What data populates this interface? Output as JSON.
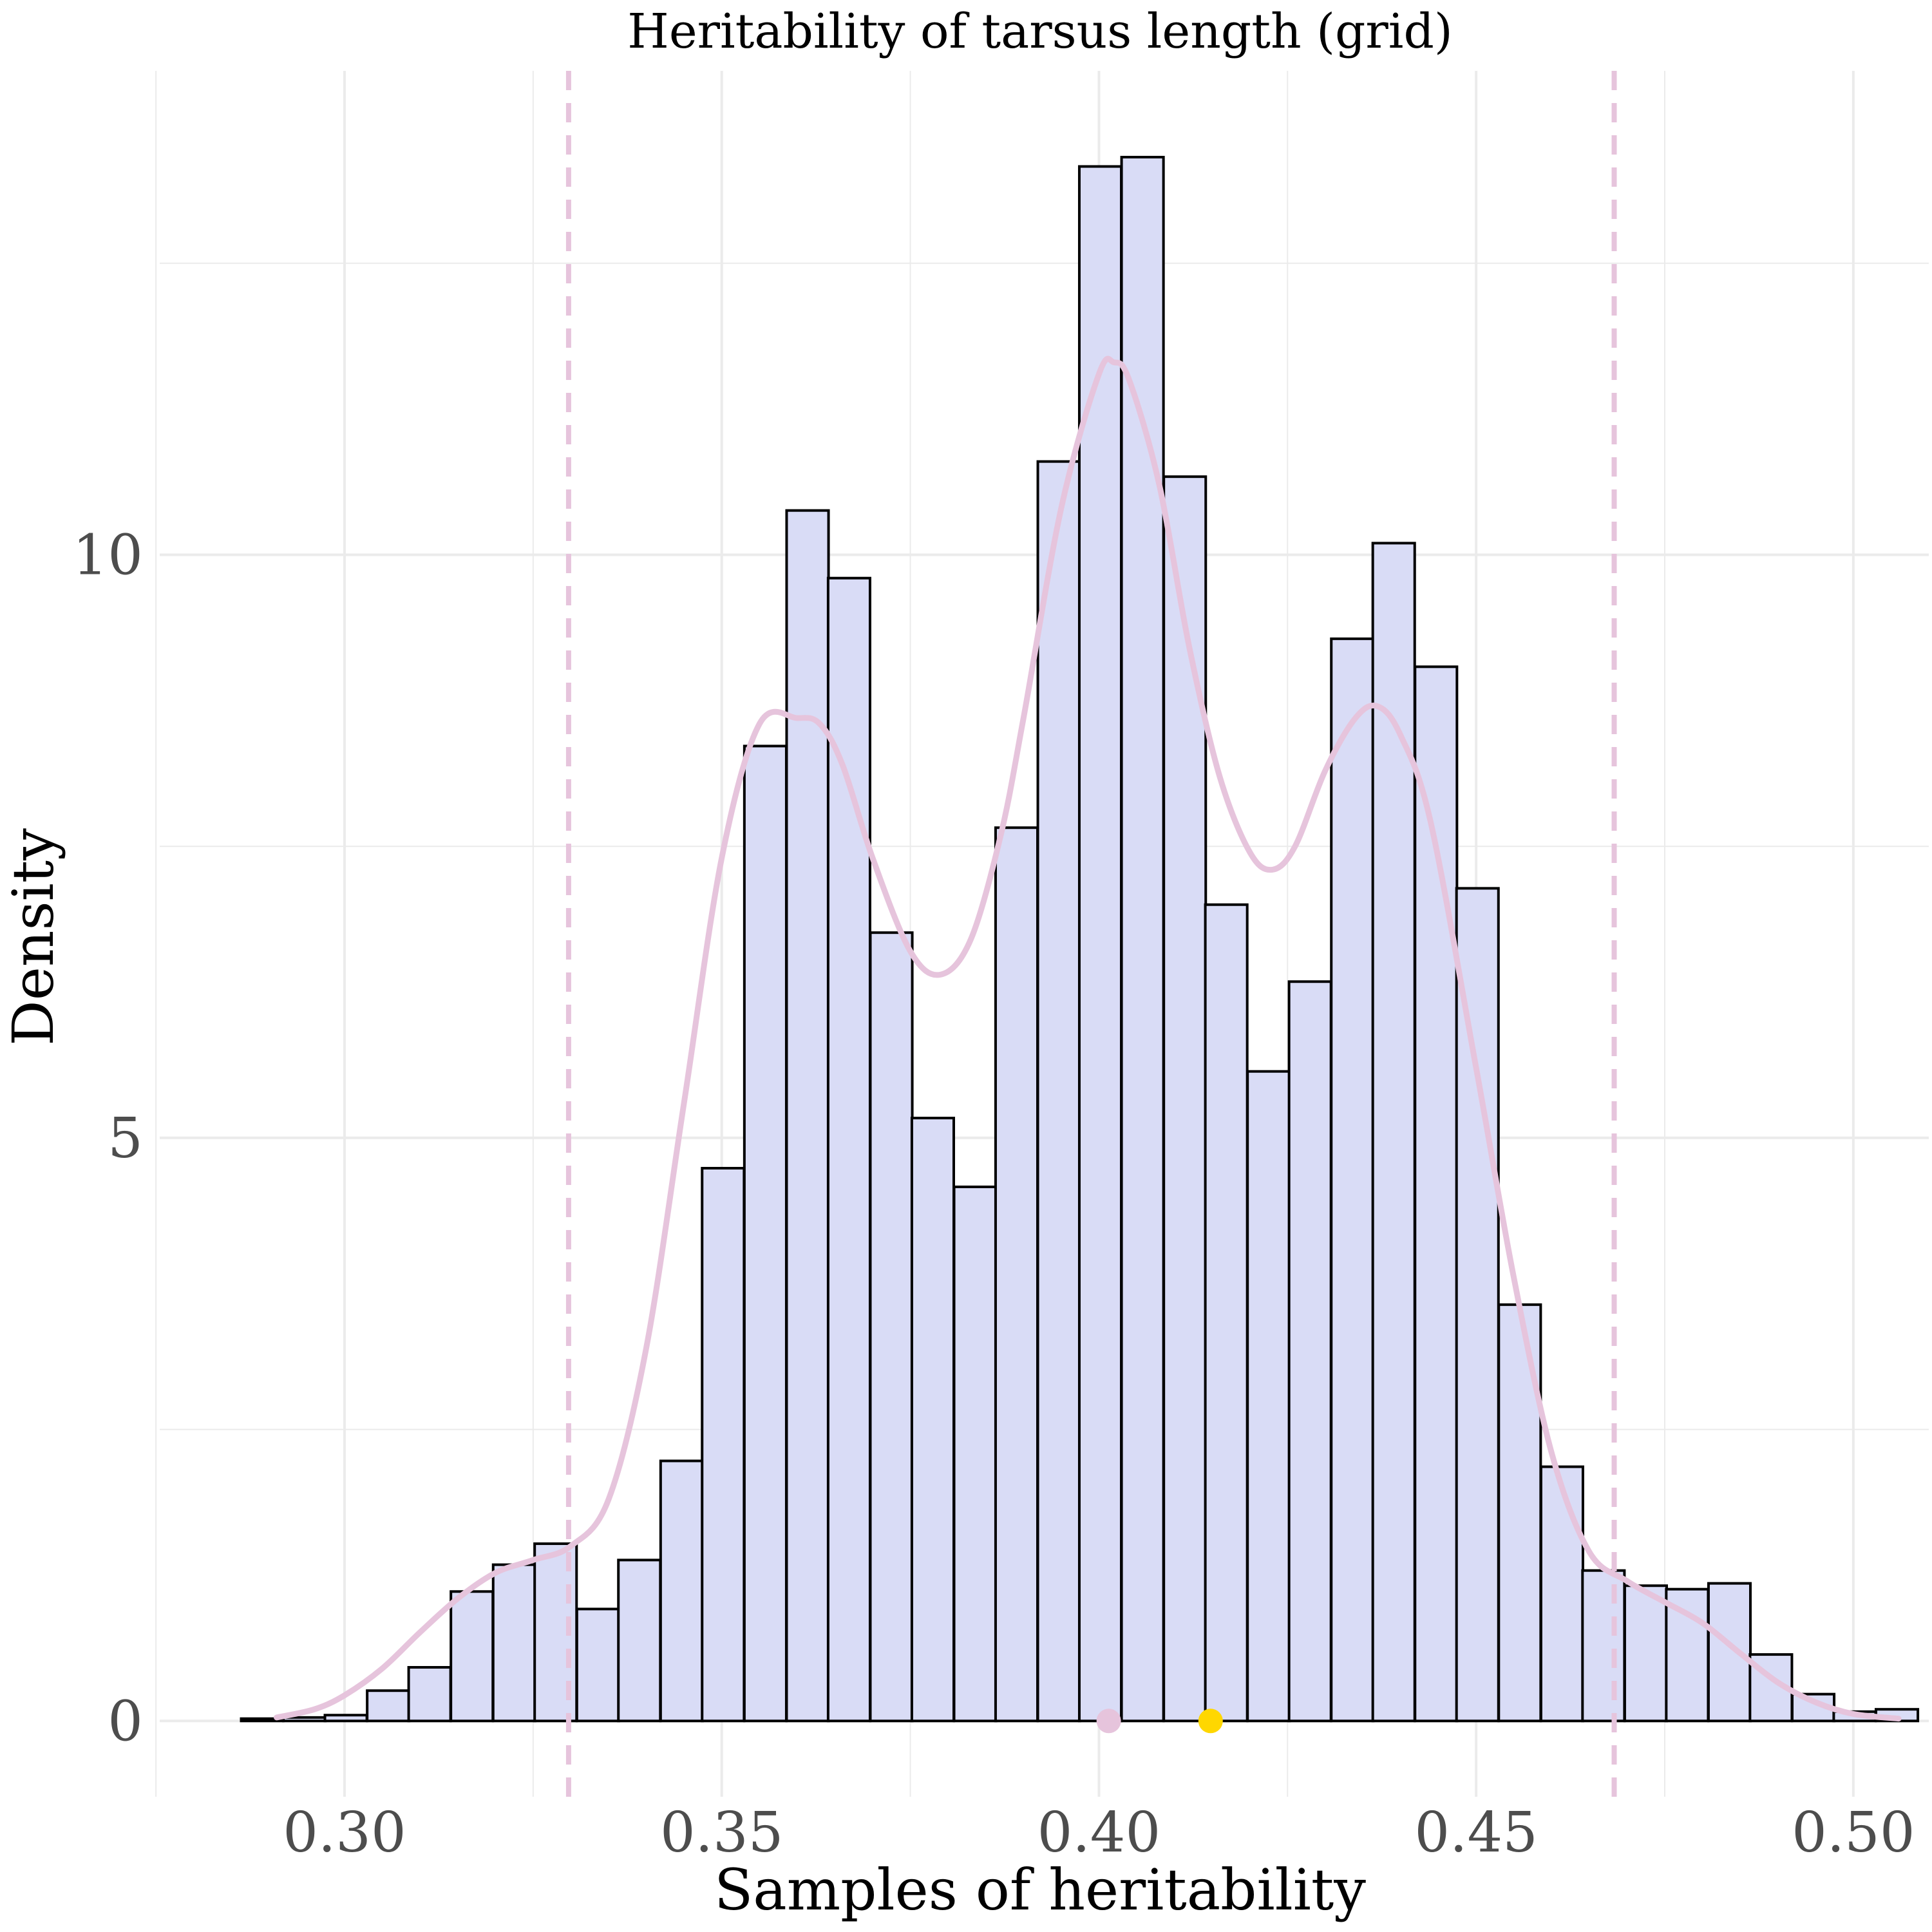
{
  "chart_data": {
    "type": "bar",
    "title": "Heritability of tarsus length (grid)",
    "xlabel": "Samples of heritability",
    "ylabel": "Density",
    "xlim": [
      0.2755,
      0.51
    ],
    "ylim": [
      -0.65,
      14.15
    ],
    "x_ticks": [
      {
        "value": 0.3,
        "label": "0.30"
      },
      {
        "value": 0.35,
        "label": "0.35"
      },
      {
        "value": 0.4,
        "label": "0.40"
      },
      {
        "value": 0.45,
        "label": "0.45"
      },
      {
        "value": 0.5,
        "label": "0.50"
      }
    ],
    "y_ticks": [
      {
        "value": 0,
        "label": "0"
      },
      {
        "value": 5,
        "label": "5"
      },
      {
        "value": 10,
        "label": "10"
      }
    ],
    "x_minor_grid": [
      0.275,
      0.325,
      0.375,
      0.425,
      0.475
    ],
    "y_minor_grid": [
      2.5,
      7.5,
      12.5
    ],
    "grid": true,
    "bin_width": 0.005556,
    "bins": [
      {
        "x0": 0.2863,
        "value": 0.02
      },
      {
        "x0": 0.2919,
        "value": 0.03
      },
      {
        "x0": 0.2974,
        "value": 0.05
      },
      {
        "x0": 0.303,
        "value": 0.26
      },
      {
        "x0": 0.3085,
        "value": 0.46
      },
      {
        "x0": 0.3141,
        "value": 1.11
      },
      {
        "x0": 0.3197,
        "value": 1.34
      },
      {
        "x0": 0.3252,
        "value": 1.52
      },
      {
        "x0": 0.3308,
        "value": 0.96
      },
      {
        "x0": 0.3363,
        "value": 1.38
      },
      {
        "x0": 0.3419,
        "value": 2.23
      },
      {
        "x0": 0.3474,
        "value": 4.74
      },
      {
        "x0": 0.353,
        "value": 8.36
      },
      {
        "x0": 0.3586,
        "value": 10.38
      },
      {
        "x0": 0.3641,
        "value": 9.8
      },
      {
        "x0": 0.3697,
        "value": 6.76
      },
      {
        "x0": 0.3752,
        "value": 5.17
      },
      {
        "x0": 0.3808,
        "value": 4.58
      },
      {
        "x0": 0.3863,
        "value": 7.66
      },
      {
        "x0": 0.3919,
        "value": 10.8
      },
      {
        "x0": 0.3974,
        "value": 13.33
      },
      {
        "x0": 0.403,
        "value": 13.41
      },
      {
        "x0": 0.4086,
        "value": 10.67
      },
      {
        "x0": 0.4141,
        "value": 7.0
      },
      {
        "x0": 0.4197,
        "value": 5.57
      },
      {
        "x0": 0.4252,
        "value": 6.34
      },
      {
        "x0": 0.4308,
        "value": 9.28
      },
      {
        "x0": 0.4363,
        "value": 10.1
      },
      {
        "x0": 0.4419,
        "value": 9.04
      },
      {
        "x0": 0.4474,
        "value": 7.14
      },
      {
        "x0": 0.453,
        "value": 3.57
      },
      {
        "x0": 0.4586,
        "value": 2.18
      },
      {
        "x0": 0.4641,
        "value": 1.29
      },
      {
        "x0": 0.4697,
        "value": 1.16
      },
      {
        "x0": 0.4752,
        "value": 1.13
      },
      {
        "x0": 0.4808,
        "value": 1.18
      },
      {
        "x0": 0.4863,
        "value": 0.57
      },
      {
        "x0": 0.4919,
        "value": 0.23
      },
      {
        "x0": 0.4974,
        "value": 0.08
      },
      {
        "x0": 0.503,
        "value": 0.1
      }
    ],
    "density_curve": {
      "x": [
        0.291,
        0.296,
        0.3,
        0.305,
        0.31,
        0.315,
        0.32,
        0.325,
        0.33,
        0.335,
        0.34,
        0.345,
        0.35,
        0.355,
        0.36,
        0.363,
        0.366,
        0.37,
        0.375,
        0.379,
        0.383,
        0.387,
        0.39,
        0.395,
        0.4,
        0.402,
        0.404,
        0.408,
        0.412,
        0.416,
        0.42,
        0.423,
        0.426,
        0.43,
        0.434,
        0.437,
        0.44,
        0.444,
        0.45,
        0.455,
        0.46,
        0.465,
        0.47,
        0.475,
        0.48,
        0.485,
        0.49,
        0.495,
        0.5,
        0.506
      ],
      "y": [
        0.03,
        0.1,
        0.22,
        0.45,
        0.76,
        1.05,
        1.27,
        1.38,
        1.5,
        1.9,
        3.2,
        5.3,
        7.4,
        8.55,
        8.6,
        8.55,
        8.2,
        7.4,
        6.6,
        6.4,
        6.7,
        7.6,
        8.6,
        10.4,
        11.55,
        11.65,
        11.5,
        10.6,
        9.2,
        8.1,
        7.45,
        7.3,
        7.5,
        8.15,
        8.6,
        8.7,
        8.45,
        7.7,
        5.6,
        3.8,
        2.3,
        1.45,
        1.2,
        1.02,
        0.84,
        0.58,
        0.33,
        0.16,
        0.06,
        0.02
      ]
    },
    "vlines": [
      0.3297,
      0.4683
    ],
    "points": [
      {
        "x": 0.4013,
        "y": 0,
        "color": "#e6c4dc"
      },
      {
        "x": 0.4148,
        "y": 0,
        "color": "#ffd700"
      }
    ],
    "colors": {
      "bar_fill": "#d9dcf6",
      "bar_stroke": "#000000",
      "density": "#e6c4dc",
      "vline": "#e6c4dc",
      "grid": "#ebebeb",
      "tick_label": "#4d4d4d"
    }
  }
}
